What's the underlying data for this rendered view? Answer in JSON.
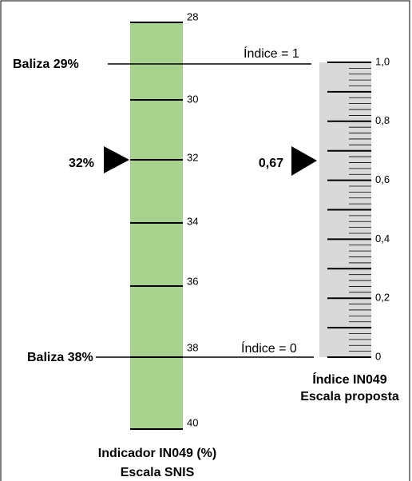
{
  "snis_scale": {
    "ticks": [
      "28",
      "30",
      "32",
      "34",
      "36",
      "38",
      "40"
    ],
    "title": [
      "Indicador IN049 (%)",
      "Escala SNIS"
    ],
    "marker": "32%"
  },
  "proposed_scale": {
    "ticks": [
      "1,0",
      "0,8",
      "0,6",
      "0,4",
      "0,2",
      "0"
    ],
    "title": [
      "Índice IN049",
      "Escala proposta"
    ],
    "marker": "0,67"
  },
  "baliza_top": {
    "label": "Baliza 29%",
    "index": "Índice = 1"
  },
  "baliza_bottom": {
    "label": "Baliza 38%",
    "index": "Índice = 0"
  }
}
